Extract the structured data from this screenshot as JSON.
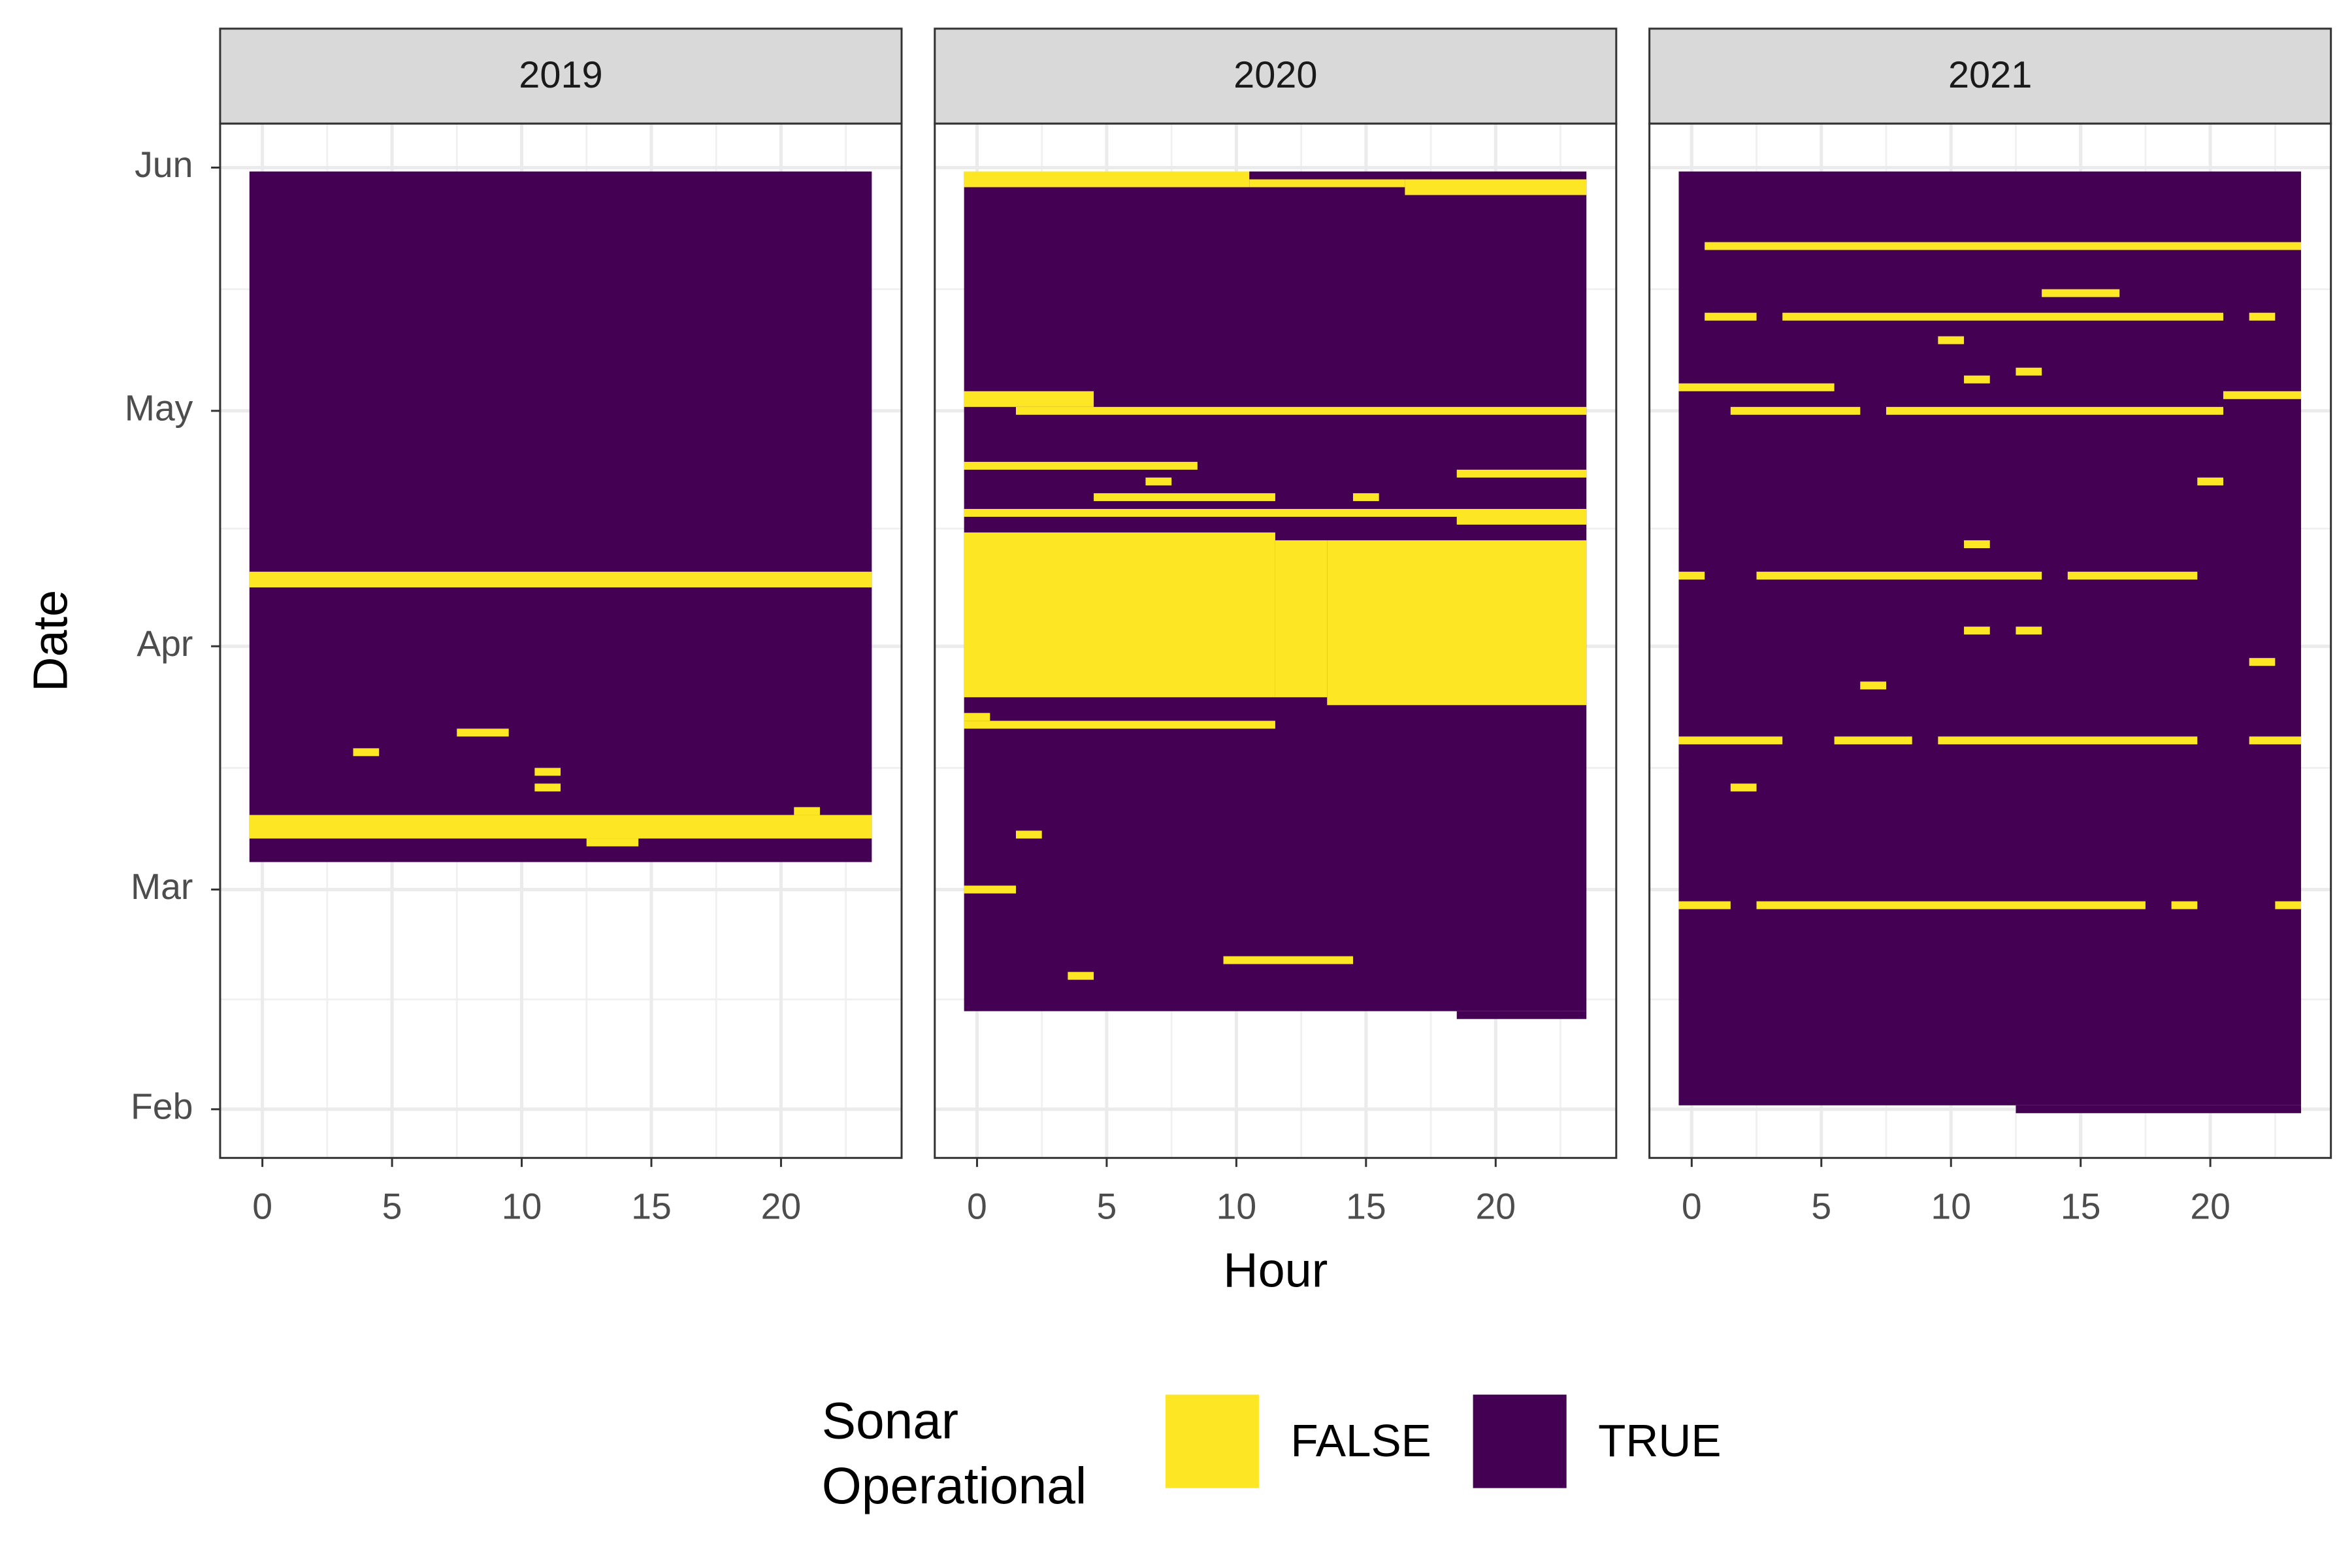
{
  "chart_data": {
    "type": "heatmap",
    "x_label": "Hour",
    "y_label": "Date",
    "legend_title": "Sonar\nOperational",
    "series": [
      {
        "name": "FALSE",
        "color": "#FDE725"
      },
      {
        "name": "TRUE",
        "color": "#440154"
      }
    ],
    "xlim": [
      -1.63,
      24.65
    ],
    "xticks": [
      0,
      5,
      10,
      15,
      20
    ],
    "ylim": [
      25.8,
      157.6
    ],
    "yticks": [
      {
        "value": 32,
        "label": "Feb"
      },
      {
        "value": 60,
        "label": "Mar"
      },
      {
        "value": 91,
        "label": "Apr"
      },
      {
        "value": 121,
        "label": "May"
      },
      {
        "value": 152,
        "label": "Jun"
      }
    ],
    "grid": true,
    "facets": [
      {
        "label": "2019",
        "operational": [
          [
            63.5,
            151.5,
            -0.5,
            23.5
          ]
        ],
        "outages": [
          [
            98.5,
            100.5,
            -0.5,
            23.5
          ],
          [
            79.5,
            80.5,
            7.5,
            9.5
          ],
          [
            77,
            78,
            3.5,
            4.5
          ],
          [
            74.5,
            75.5,
            10.5,
            11.5
          ],
          [
            72.5,
            73.5,
            10.5,
            11.5
          ],
          [
            69.5,
            70.5,
            20.5,
            21.5
          ],
          [
            66.5,
            69.5,
            -0.5,
            23.5
          ],
          [
            65.5,
            66.5,
            12.5,
            14.5
          ]
        ]
      },
      {
        "label": "2020",
        "operational": [
          [
            44.5,
            151.5,
            -0.5,
            23.5
          ],
          [
            43.5,
            44.5,
            18.5,
            23.5
          ]
        ],
        "outages": [
          [
            149.5,
            151.5,
            -0.5,
            10.5
          ],
          [
            149.5,
            150.5,
            10.5,
            16.5
          ],
          [
            148.5,
            150.5,
            16.5,
            23.5
          ],
          [
            121.5,
            123.5,
            -0.5,
            4.5
          ],
          [
            120.5,
            121.5,
            1.5,
            23.5
          ],
          [
            113.5,
            114.5,
            -0.5,
            8.5
          ],
          [
            112.5,
            113.5,
            18.5,
            23.5
          ],
          [
            111.5,
            112.5,
            6.5,
            7.5
          ],
          [
            109.5,
            110.5,
            4.5,
            11.5
          ],
          [
            109.5,
            110.5,
            14.5,
            15.5
          ],
          [
            107.5,
            108.5,
            -0.5,
            23.5
          ],
          [
            106.5,
            107.5,
            18.5,
            23.5
          ],
          [
            84.5,
            105.5,
            -0.5,
            11.5
          ],
          [
            84.5,
            104.5,
            11.5,
            13.5
          ],
          [
            83.5,
            104.5,
            13.5,
            23.5
          ],
          [
            81.5,
            82.5,
            -0.5,
            0.5
          ],
          [
            80.5,
            81.5,
            -0.5,
            11.5
          ],
          [
            66.5,
            67.5,
            1.5,
            2.5
          ],
          [
            59.5,
            60.5,
            -0.5,
            1.5
          ],
          [
            50.5,
            51.5,
            9.5,
            14.5
          ],
          [
            48.5,
            49.5,
            3.5,
            4.5
          ]
        ]
      },
      {
        "label": "2021",
        "operational": [
          [
            32.5,
            151.5,
            -0.5,
            23.5
          ],
          [
            31.5,
            32.5,
            12.5,
            23.5
          ]
        ],
        "outages": [
          [
            141.5,
            142.5,
            0.5,
            23.5
          ],
          [
            135.5,
            136.5,
            13.5,
            16.5
          ],
          [
            132.5,
            133.5,
            0.5,
            2.5
          ],
          [
            132.5,
            133.5,
            3.5,
            20.5
          ],
          [
            132.5,
            133.5,
            21.5,
            22.5
          ],
          [
            129.5,
            130.5,
            9.5,
            10.5
          ],
          [
            125.5,
            126.5,
            12.5,
            13.5
          ],
          [
            124.5,
            125.5,
            10.5,
            11.5
          ],
          [
            123.5,
            124.5,
            -0.5,
            5.5
          ],
          [
            122.5,
            123.5,
            20.5,
            23.5
          ],
          [
            120.5,
            121.5,
            1.5,
            6.5
          ],
          [
            120.5,
            121.5,
            7.5,
            20.5
          ],
          [
            111.5,
            112.5,
            19.5,
            20.5
          ],
          [
            103.5,
            104.5,
            10.5,
            11.5
          ],
          [
            99.5,
            100.5,
            -0.5,
            0.5
          ],
          [
            99.5,
            100.5,
            2.5,
            13.5
          ],
          [
            99.5,
            100.5,
            14.5,
            19.5
          ],
          [
            92.5,
            93.5,
            10.5,
            11.5
          ],
          [
            92.5,
            93.5,
            12.5,
            13.5
          ],
          [
            88.5,
            89.5,
            21.5,
            22.5
          ],
          [
            85.5,
            86.5,
            6.5,
            7.5
          ],
          [
            78.5,
            79.5,
            -0.5,
            3.5
          ],
          [
            78.5,
            79.5,
            5.5,
            8.5
          ],
          [
            78.5,
            79.5,
            9.5,
            19.5
          ],
          [
            78.5,
            79.5,
            21.5,
            23.5
          ],
          [
            72.5,
            73.5,
            1.5,
            2.5
          ],
          [
            57.5,
            58.5,
            -0.5,
            1.5
          ],
          [
            57.5,
            58.5,
            2.5,
            17.5
          ],
          [
            57.5,
            58.5,
            18.5,
            19.5
          ],
          [
            57.5,
            58.5,
            22.5,
            23.5
          ]
        ]
      }
    ]
  }
}
